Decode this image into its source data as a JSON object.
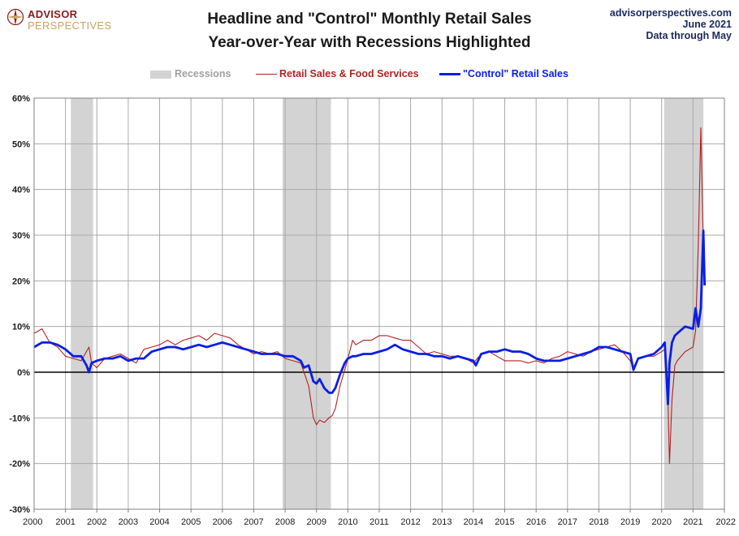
{
  "header": {
    "logo_line1": "ADVISOR",
    "logo_line2": "PERSPECTIVES",
    "title_line1": "Headline and \"Control\" Monthly Retail Sales",
    "title_line2": "Year-over-Year with Recessions Highlighted",
    "source_line1": "advisorperspectives.com",
    "source_line2": "June 2021",
    "source_line3": "Data through May"
  },
  "legend": {
    "recessions": "Recessions",
    "headline": "Retail Sales & Food Services",
    "control": "\"Control\" Retail Sales"
  },
  "colors": {
    "recession": "#d3d3d3",
    "headline": "#b22222",
    "control": "#0a1ee6",
    "zero_line": "#000000",
    "grid": "#a8a8a8"
  },
  "chart_data": {
    "type": "line",
    "title": "Headline and \"Control\" Monthly Retail Sales Year-over-Year with Recessions Highlighted",
    "xlabel": "",
    "ylabel": "",
    "xlim": [
      2000,
      2022
    ],
    "ylim": [
      -30,
      60
    ],
    "x_ticks": [
      "2000",
      "2001",
      "2002",
      "2003",
      "2004",
      "2005",
      "2006",
      "2007",
      "2008",
      "2009",
      "2010",
      "2011",
      "2012",
      "2013",
      "2014",
      "2015",
      "2016",
      "2017",
      "2018",
      "2019",
      "2020",
      "2021",
      "2022"
    ],
    "y_ticks": [
      "-30%",
      "-20%",
      "-10%",
      "0%",
      "10%",
      "20%",
      "30%",
      "40%",
      "50%",
      "60%"
    ],
    "y_tick_values": [
      -30,
      -20,
      -10,
      0,
      10,
      20,
      30,
      40,
      50,
      60
    ],
    "grid": true,
    "legend_position": "top-center",
    "recessions": [
      {
        "start": 2001.17,
        "end": 2001.88
      },
      {
        "start": 2007.92,
        "end": 2009.46
      },
      {
        "start": 2020.08,
        "end": 2021.33
      }
    ],
    "series": [
      {
        "name": "Retail Sales & Food Services",
        "x": [
          2000.0,
          2000.25,
          2000.5,
          2000.75,
          2001.0,
          2001.25,
          2001.5,
          2001.75,
          2001.83,
          2002.0,
          2002.25,
          2002.5,
          2002.75,
          2003.0,
          2003.25,
          2003.5,
          2003.75,
          2004.0,
          2004.25,
          2004.5,
          2004.75,
          2005.0,
          2005.25,
          2005.5,
          2005.75,
          2006.0,
          2006.25,
          2006.5,
          2006.75,
          2007.0,
          2007.25,
          2007.5,
          2007.75,
          2008.0,
          2008.25,
          2008.5,
          2008.75,
          2008.9,
          2009.0,
          2009.1,
          2009.25,
          2009.4,
          2009.5,
          2009.6,
          2009.75,
          2009.9,
          2010.0,
          2010.15,
          2010.25,
          2010.5,
          2010.75,
          2011.0,
          2011.25,
          2011.5,
          2011.75,
          2012.0,
          2012.25,
          2012.5,
          2012.75,
          2013.0,
          2013.25,
          2013.5,
          2013.75,
          2014.0,
          2014.25,
          2014.5,
          2014.75,
          2015.0,
          2015.25,
          2015.5,
          2015.75,
          2016.0,
          2016.25,
          2016.5,
          2016.75,
          2017.0,
          2017.25,
          2017.5,
          2017.75,
          2018.0,
          2018.25,
          2018.5,
          2018.75,
          2019.0,
          2019.1,
          2019.25,
          2019.5,
          2019.75,
          2020.0,
          2020.1,
          2020.2,
          2020.25,
          2020.33,
          2020.42,
          2020.5,
          2020.75,
          2021.0,
          2021.08,
          2021.17,
          2021.25,
          2021.33,
          2021.37
        ],
        "values": [
          8.5,
          9.5,
          6.5,
          5.5,
          3.5,
          3.0,
          2.5,
          5.5,
          2.0,
          1.0,
          3.0,
          3.5,
          4.0,
          3.0,
          2.0,
          5.0,
          5.5,
          6.0,
          7.0,
          6.0,
          7.0,
          7.5,
          8.0,
          7.0,
          8.5,
          8.0,
          7.5,
          6.0,
          5.0,
          4.0,
          4.5,
          4.0,
          4.5,
          3.0,
          2.5,
          2.0,
          -3.0,
          -10.0,
          -11.5,
          -10.5,
          -11.0,
          -10.0,
          -9.5,
          -8.0,
          -3.0,
          0.5,
          3.0,
          7.0,
          6.0,
          7.0,
          7.0,
          8.0,
          8.0,
          7.5,
          7.0,
          7.0,
          5.5,
          4.0,
          4.5,
          4.0,
          3.5,
          3.5,
          3.0,
          2.0,
          4.0,
          4.5,
          3.5,
          2.5,
          2.5,
          2.5,
          2.0,
          2.5,
          2.0,
          3.0,
          3.5,
          4.5,
          4.0,
          3.5,
          4.5,
          5.0,
          5.5,
          6.0,
          4.5,
          2.5,
          1.0,
          3.0,
          3.5,
          3.5,
          4.5,
          5.0,
          -6.0,
          -20.0,
          -6.0,
          1.5,
          2.5,
          4.5,
          5.5,
          9.0,
          28.0,
          53.5,
          28.0,
          28.0
        ]
      },
      {
        "name": "\"Control\" Retail Sales",
        "x": [
          2000.0,
          2000.25,
          2000.5,
          2000.75,
          2001.0,
          2001.25,
          2001.5,
          2001.67,
          2001.75,
          2001.83,
          2002.0,
          2002.25,
          2002.5,
          2002.75,
          2003.0,
          2003.25,
          2003.5,
          2003.75,
          2004.0,
          2004.25,
          2004.5,
          2004.75,
          2005.0,
          2005.25,
          2005.5,
          2005.75,
          2006.0,
          2006.25,
          2006.5,
          2006.75,
          2007.0,
          2007.25,
          2007.5,
          2007.75,
          2008.0,
          2008.25,
          2008.5,
          2008.6,
          2008.75,
          2008.9,
          2009.0,
          2009.1,
          2009.25,
          2009.4,
          2009.5,
          2009.6,
          2009.75,
          2009.9,
          2010.0,
          2010.15,
          2010.25,
          2010.5,
          2010.75,
          2011.0,
          2011.25,
          2011.5,
          2011.75,
          2012.0,
          2012.25,
          2012.5,
          2012.75,
          2013.0,
          2013.25,
          2013.5,
          2013.75,
          2014.0,
          2014.08,
          2014.25,
          2014.5,
          2014.75,
          2015.0,
          2015.25,
          2015.5,
          2015.75,
          2016.0,
          2016.25,
          2016.5,
          2016.75,
          2017.0,
          2017.25,
          2017.5,
          2017.75,
          2018.0,
          2018.25,
          2018.5,
          2018.75,
          2019.0,
          2019.1,
          2019.25,
          2019.5,
          2019.75,
          2020.0,
          2020.1,
          2020.2,
          2020.25,
          2020.33,
          2020.42,
          2020.5,
          2020.75,
          2021.0,
          2021.08,
          2021.17,
          2021.25,
          2021.33,
          2021.37
        ],
        "values": [
          5.5,
          6.5,
          6.5,
          6.0,
          5.0,
          3.5,
          3.5,
          1.5,
          0.0,
          2.0,
          2.5,
          3.0,
          3.0,
          3.5,
          2.5,
          3.0,
          3.0,
          4.5,
          5.0,
          5.5,
          5.5,
          5.0,
          5.5,
          6.0,
          5.5,
          6.0,
          6.5,
          6.0,
          5.5,
          5.0,
          4.5,
          4.0,
          4.0,
          4.0,
          3.5,
          3.5,
          2.5,
          1.0,
          1.5,
          -2.0,
          -2.5,
          -1.5,
          -3.5,
          -4.5,
          -4.5,
          -3.5,
          -0.5,
          2.0,
          3.0,
          3.5,
          3.5,
          4.0,
          4.0,
          4.5,
          5.0,
          6.0,
          5.0,
          4.5,
          4.0,
          4.0,
          3.5,
          3.5,
          3.0,
          3.5,
          3.0,
          2.5,
          1.5,
          4.0,
          4.5,
          4.5,
          5.0,
          4.5,
          4.5,
          4.0,
          3.0,
          2.5,
          2.5,
          2.5,
          3.0,
          3.5,
          4.0,
          4.5,
          5.5,
          5.5,
          5.0,
          4.5,
          4.0,
          0.5,
          3.0,
          3.5,
          4.0,
          5.5,
          6.5,
          -7.0,
          2.0,
          6.5,
          8.0,
          8.5,
          10.0,
          9.5,
          14.0,
          10.0,
          14.0,
          31.0,
          19.0
        ]
      }
    ]
  }
}
